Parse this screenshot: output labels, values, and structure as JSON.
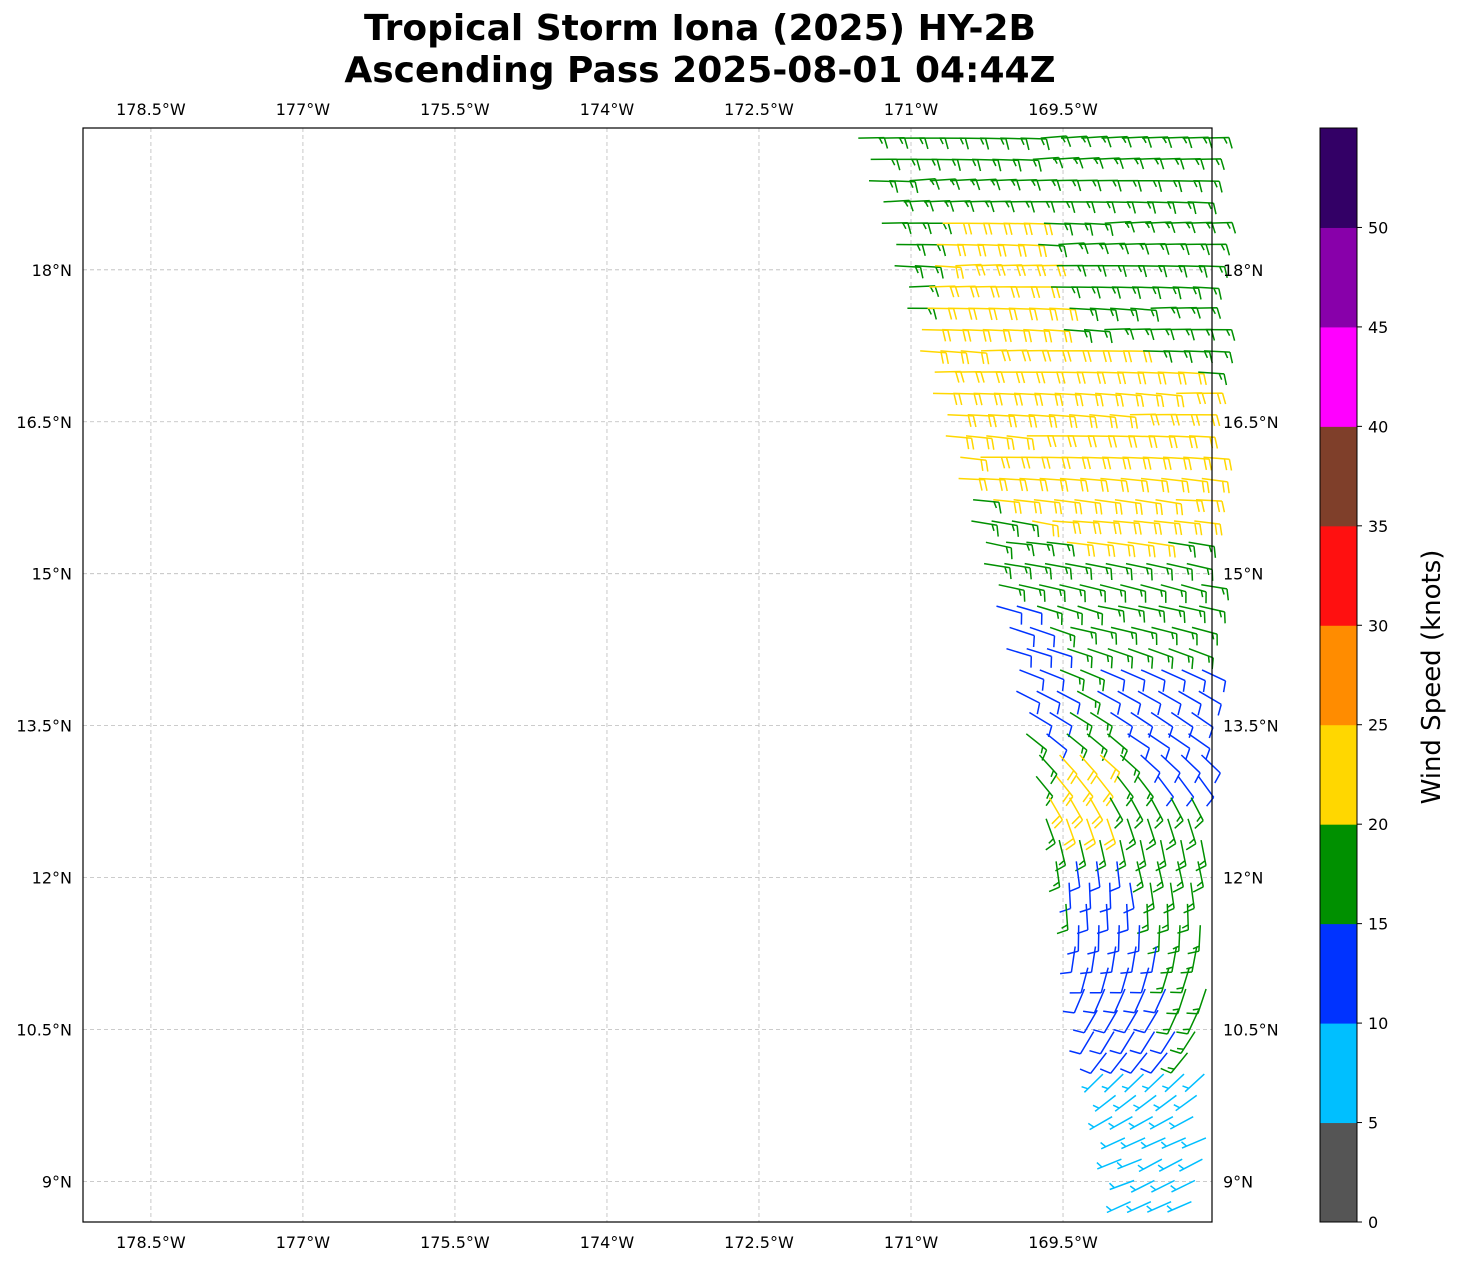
{
  "chart_data": {
    "type": "scatter",
    "subtype": "wind-barb-map",
    "title_line1": "Tropical Storm Iona (2025) HY-2B",
    "title_line2": "Ascending Pass 2025-08-01 04:44Z",
    "lon_range": [
      -179.17,
      -168.03
    ],
    "lat_range": [
      8.6,
      19.4
    ],
    "grid": true,
    "lon_ticks": [
      {
        "value": -178.5,
        "label": "178.5°W"
      },
      {
        "value": -177.0,
        "label": "177°W"
      },
      {
        "value": -175.5,
        "label": "175.5°W"
      },
      {
        "value": -174.0,
        "label": "174°W"
      },
      {
        "value": -172.5,
        "label": "172.5°W"
      },
      {
        "value": -171.0,
        "label": "171°W"
      },
      {
        "value": -169.5,
        "label": "169.5°W"
      }
    ],
    "lat_ticks": [
      {
        "value": 18.0,
        "label": "18°N"
      },
      {
        "value": 16.5,
        "label": "16.5°N"
      },
      {
        "value": 15.0,
        "label": "15°N"
      },
      {
        "value": 13.5,
        "label": "13.5°N"
      },
      {
        "value": 12.0,
        "label": "12°N"
      },
      {
        "value": 10.5,
        "label": "10.5°N"
      },
      {
        "value": 9.0,
        "label": "9°N"
      }
    ],
    "colorbar": {
      "label": "Wind Speed (knots)",
      "bounds": [
        0,
        5,
        10,
        15,
        20,
        25,
        30,
        35,
        40,
        45,
        50,
        55
      ],
      "colors": [
        "#555555",
        "#00bfff",
        "#0033ff",
        "#009000",
        "#ffd700",
        "#ff8c00",
        "#ff1010",
        "#7f3f2a",
        "#ff00ff",
        "#8800aa",
        "#330066"
      ],
      "tick_labels": [
        "0",
        "5",
        "10",
        "15",
        "20",
        "25",
        "30",
        "35",
        "40",
        "45",
        "50"
      ]
    },
    "swath": {
      "west_edge": [
        [
          -171.52,
          19.4
        ],
        [
          -171.52,
          19.23
        ],
        [
          -170.17,
          14.74
        ],
        [
          -169.48,
          11.78
        ],
        [
          -169.18,
          10.4
        ],
        [
          -168.79,
          8.6
        ]
      ],
      "east_limit": -168.08,
      "lat_step": 0.21,
      "lon_step": 0.2
    },
    "default_speed_kt": 17,
    "speed_zones": [
      {
        "speed_kt": 22,
        "polygon": [
          [
            -170.81,
            18.49
          ],
          [
            -169.92,
            18.64
          ],
          [
            -169.53,
            17.41
          ],
          [
            -168.03,
            16.91
          ],
          [
            -168.03,
            15.53
          ],
          [
            -169.04,
            15.14
          ],
          [
            -169.63,
            15.34
          ],
          [
            -170.52,
            15.83
          ],
          [
            -171.01,
            17.51
          ]
        ]
      },
      {
        "speed_kt": 12,
        "polygon": [
          [
            -170.3,
            14.85
          ],
          [
            -169.8,
            14.8
          ],
          [
            -169.45,
            13.7
          ],
          [
            -169.6,
            13.3
          ],
          [
            -170.0,
            13.5
          ]
        ]
      },
      {
        "speed_kt": 12,
        "polygon": [
          [
            -169.13,
            14.15
          ],
          [
            -168.03,
            14.25
          ],
          [
            -168.03,
            12.97
          ],
          [
            -168.64,
            12.87
          ],
          [
            -169.23,
            13.76
          ]
        ]
      },
      {
        "speed_kt": 22,
        "polygon": [
          [
            -169.73,
            13.36
          ],
          [
            -169.04,
            13.36
          ],
          [
            -169.04,
            12.37
          ],
          [
            -169.63,
            12.47
          ]
        ]
      },
      {
        "speed_kt": 12,
        "polygon": [
          [
            -169.5,
            12.18
          ],
          [
            -168.89,
            12.28
          ],
          [
            -168.4,
            10.8
          ],
          [
            -168.35,
            10.2
          ],
          [
            -169.23,
            10.2
          ]
        ]
      },
      {
        "speed_kt": 7,
        "polygon": [
          [
            -170,
            10.2
          ],
          [
            -168,
            10.2
          ],
          [
            -168,
            8.5
          ],
          [
            -170,
            8.5
          ]
        ]
      }
    ],
    "direction_profile_deg_from": [
      [
        19.4,
        95
      ],
      [
        16.0,
        100
      ],
      [
        14.5,
        112
      ],
      [
        13.5,
        130
      ],
      [
        12.5,
        170
      ],
      [
        11.5,
        190
      ],
      [
        10.5,
        220
      ],
      [
        9.5,
        250
      ],
      [
        8.6,
        255
      ]
    ]
  }
}
